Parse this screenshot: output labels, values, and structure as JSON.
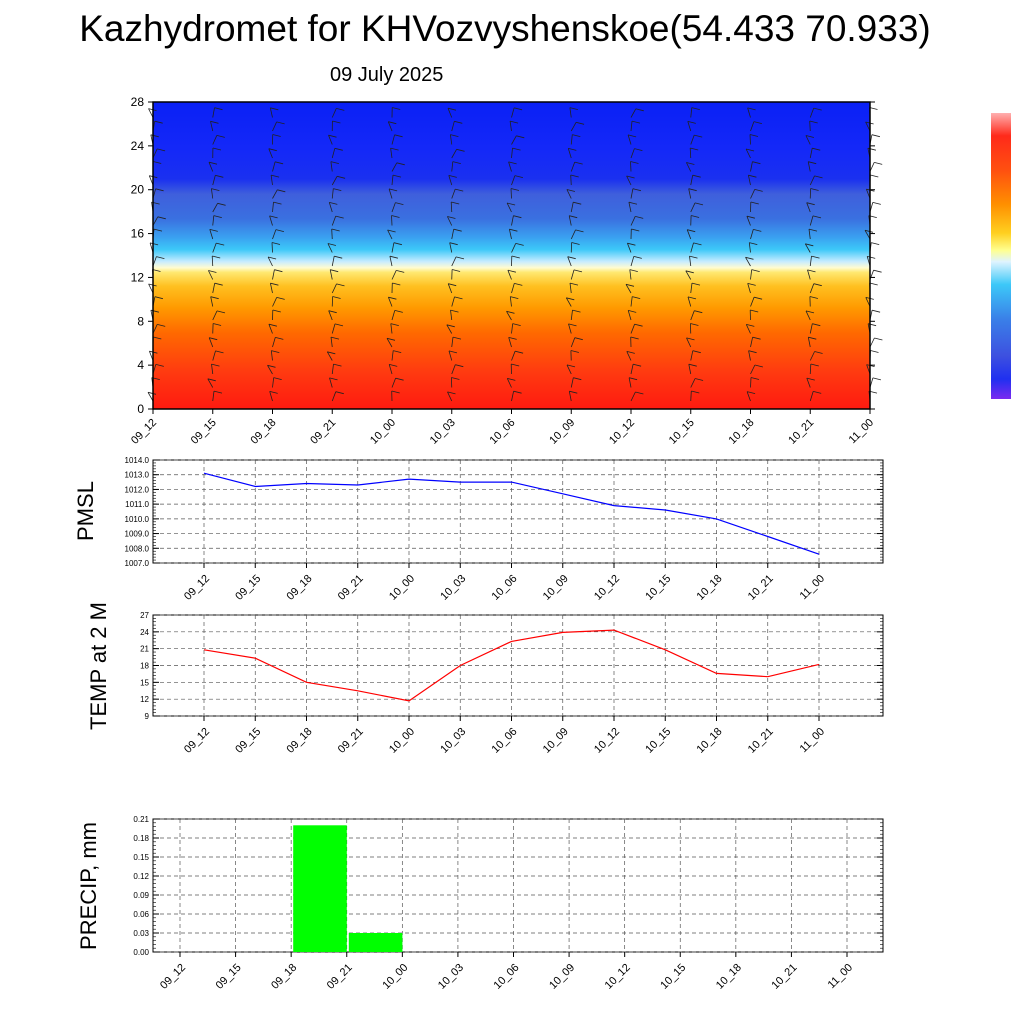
{
  "header": {
    "title": "Kazhydromet for KHVozvyshenskoe(54.433 70.933)",
    "date": "09 July 2025"
  },
  "chart_data": [
    {
      "type": "heatmap",
      "name": "vertical-profile",
      "y_ticks": [
        "0",
        "4",
        "8",
        "12",
        "16",
        "20",
        "24",
        "28"
      ],
      "ylim": [
        0,
        28
      ],
      "x_ticks": [
        "09_12",
        "09_15",
        "09_18",
        "09_21",
        "10_00",
        "10_03",
        "10_06",
        "10_09",
        "10_12",
        "10_15",
        "10_18",
        "10_21",
        "11_00"
      ],
      "colorbar": [
        "#ff8a8a",
        "#ff2a1a",
        "#ff5a10",
        "#ff8a00",
        "#ffb400",
        "#ffe040",
        "#ffffc0",
        "#bfe8ff",
        "#3cc8f8",
        "#3a8ee8",
        "#3d5fe0",
        "#2030f0",
        "#7a2af0"
      ]
    },
    {
      "type": "line",
      "name": "pmsl",
      "ylabel": "PMSL",
      "y_ticks": [
        "1014.0",
        "1013.0",
        "1012.0",
        "1011.0",
        "1010.0",
        "1009.0",
        "1008.0",
        "1007.0"
      ],
      "ylim": [
        1007,
        1014
      ],
      "categories": [
        "09_12",
        "09_15",
        "09_18",
        "09_21",
        "10_00",
        "10_03",
        "10_06",
        "10_09",
        "10_12",
        "10_15",
        "10_18",
        "10_21",
        "11_00"
      ],
      "values": [
        1013.1,
        1012.2,
        1012.4,
        1012.3,
        1012.7,
        1012.5,
        1012.5,
        1011.7,
        1010.9,
        1010.6,
        1010.0,
        1008.8,
        1007.6
      ],
      "color": "#0000ff"
    },
    {
      "type": "line",
      "name": "temp",
      "ylabel": "TEMP at 2 M",
      "y_ticks": [
        "27",
        "24",
        "21",
        "18",
        "15",
        "12",
        "9"
      ],
      "ylim": [
        9,
        27
      ],
      "categories": [
        "09_12",
        "09_15",
        "09_18",
        "09_21",
        "10_00",
        "10_03",
        "10_06",
        "10_09",
        "10_12",
        "10_15",
        "10_18",
        "10_21",
        "11_00"
      ],
      "values": [
        20.8,
        19.3,
        15.0,
        13.5,
        11.7,
        18.0,
        22.3,
        23.9,
        24.3,
        20.8,
        16.6,
        16.0,
        18.2
      ],
      "color": "#ff0000"
    },
    {
      "type": "bar",
      "name": "precip",
      "ylabel": "PRECIP, mm",
      "y_ticks": [
        "0.21",
        "0.18",
        "0.15",
        "0.12",
        "0.09",
        "0.06",
        "0.03",
        "0.00"
      ],
      "ylim": [
        0,
        0.21
      ],
      "categories": [
        "09_12",
        "09_15",
        "09_18",
        "09_21",
        "10_00",
        "10_03",
        "10_06",
        "10_09",
        "10_12",
        "10_15",
        "10_18",
        "10_21",
        "11_00"
      ],
      "values": [
        0,
        0,
        0,
        0.2,
        0.03,
        0,
        0,
        0,
        0,
        0,
        0,
        0,
        0
      ],
      "color": "#00ff00"
    }
  ]
}
